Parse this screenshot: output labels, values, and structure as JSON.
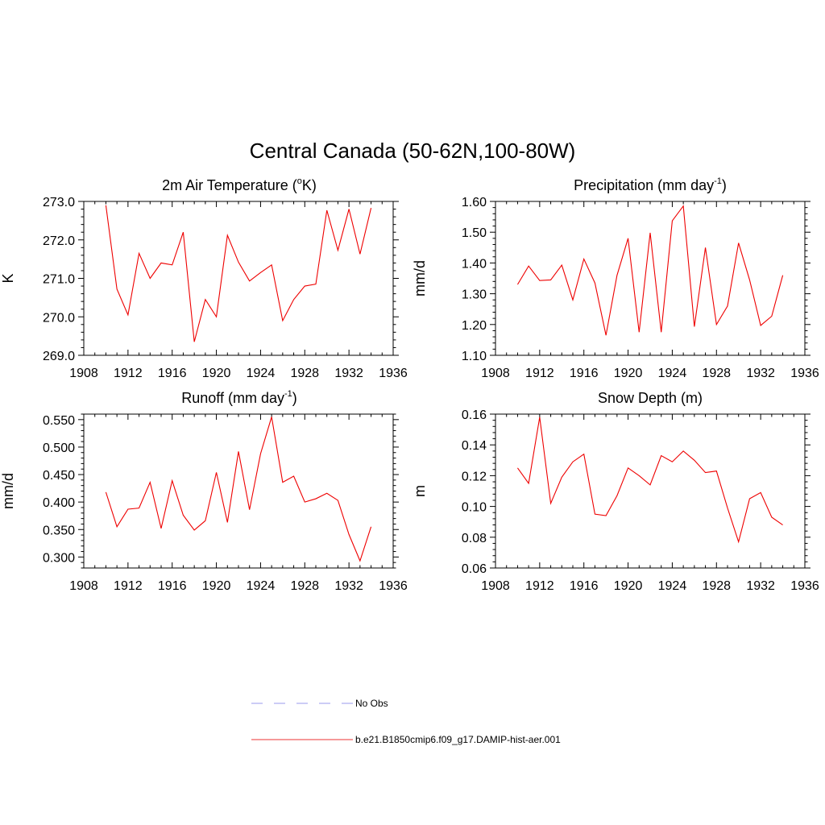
{
  "figure_title": "Central Canada (50-62N,100-80W)",
  "legend": {
    "entries": [
      {
        "label": "No Obs",
        "style": "dashed",
        "color": "#9999ee"
      },
      {
        "label": "b.e21.B1850cmip6.f09_g17.DAMIP-hist-aer.001",
        "style": "solid",
        "color": "#ee3333"
      }
    ]
  },
  "chart_data": [
    {
      "type": "line",
      "title": "2m Air Temperature (",
      "title_sup": "o",
      "title_suffix": "K)",
      "ylabel": "K",
      "xlim": [
        1908,
        1936
      ],
      "ylim": [
        269.0,
        273.0
      ],
      "xticks": [
        1908,
        1912,
        1916,
        1920,
        1924,
        1928,
        1932,
        1936
      ],
      "yticks": [
        269.0,
        270.0,
        271.0,
        272.0,
        273.0
      ],
      "ytick_labels": [
        "269.0",
        "270.0",
        "271.0",
        "272.0",
        "273.0"
      ],
      "x": [
        1910,
        1911,
        1912,
        1913,
        1914,
        1915,
        1916,
        1917,
        1918,
        1919,
        1920,
        1921,
        1922,
        1923,
        1924,
        1925,
        1926,
        1927,
        1928,
        1929,
        1930,
        1931,
        1932,
        1933,
        1934
      ],
      "series": [
        {
          "values": [
            272.9,
            270.72,
            270.05,
            271.65,
            271.0,
            271.4,
            271.35,
            272.2,
            269.35,
            270.45,
            270.0,
            272.12,
            271.42,
            270.93,
            271.15,
            271.35,
            269.9,
            270.45,
            270.8,
            270.85,
            272.77,
            271.73,
            272.8,
            271.63,
            272.83
          ],
          "color": "#ee0000"
        }
      ]
    },
    {
      "type": "line",
      "title": "Precipitation (mm day",
      "title_sup": "-1",
      "title_suffix": ")",
      "ylabel": "mm/d",
      "xlim": [
        1908,
        1936
      ],
      "ylim": [
        1.1,
        1.6
      ],
      "xticks": [
        1908,
        1912,
        1916,
        1920,
        1924,
        1928,
        1932,
        1936
      ],
      "yticks": [
        1.1,
        1.2,
        1.3,
        1.4,
        1.5,
        1.6
      ],
      "ytick_labels": [
        "1.10",
        "1.20",
        "1.30",
        "1.40",
        "1.50",
        "1.60"
      ],
      "x": [
        1910,
        1911,
        1912,
        1913,
        1914,
        1915,
        1916,
        1917,
        1918,
        1919,
        1920,
        1921,
        1922,
        1923,
        1924,
        1925,
        1926,
        1927,
        1928,
        1929,
        1930,
        1931,
        1932,
        1933,
        1934
      ],
      "series": [
        {
          "values": [
            1.33,
            1.39,
            1.343,
            1.345,
            1.393,
            1.28,
            1.413,
            1.335,
            1.165,
            1.36,
            1.48,
            1.175,
            1.498,
            1.175,
            1.537,
            1.585,
            1.193,
            1.45,
            1.2,
            1.26,
            1.465,
            1.345,
            1.197,
            1.227,
            1.36
          ],
          "color": "#ee0000"
        }
      ]
    },
    {
      "type": "line",
      "title": "Runoff (mm day",
      "title_sup": "-1",
      "title_suffix": ")",
      "ylabel": "mm/d",
      "xlim": [
        1908,
        1936
      ],
      "ylim": [
        0.28,
        0.56
      ],
      "xticks": [
        1908,
        1912,
        1916,
        1920,
        1924,
        1928,
        1932,
        1936
      ],
      "yticks": [
        0.3,
        0.35,
        0.4,
        0.45,
        0.5,
        0.55
      ],
      "ytick_labels": [
        "0.300",
        "0.350",
        "0.400",
        "0.450",
        "0.500",
        "0.550"
      ],
      "x": [
        1910,
        1911,
        1912,
        1913,
        1914,
        1915,
        1916,
        1917,
        1918,
        1919,
        1920,
        1921,
        1922,
        1923,
        1924,
        1925,
        1926,
        1927,
        1928,
        1929,
        1930,
        1931,
        1932,
        1933,
        1934
      ],
      "series": [
        {
          "values": [
            0.418,
            0.355,
            0.387,
            0.389,
            0.436,
            0.352,
            0.439,
            0.376,
            0.349,
            0.366,
            0.454,
            0.363,
            0.492,
            0.386,
            0.488,
            0.555,
            0.436,
            0.447,
            0.4,
            0.406,
            0.416,
            0.403,
            0.341,
            0.293,
            0.355
          ],
          "color": "#ee0000"
        }
      ]
    },
    {
      "type": "line",
      "title": "Snow Depth (m)",
      "title_sup": "",
      "title_suffix": "",
      "ylabel": "m",
      "xlim": [
        1908,
        1936
      ],
      "ylim": [
        0.06,
        0.16
      ],
      "xticks": [
        1908,
        1912,
        1916,
        1920,
        1924,
        1928,
        1932,
        1936
      ],
      "yticks": [
        0.06,
        0.08,
        0.1,
        0.12,
        0.14,
        0.16
      ],
      "ytick_labels": [
        "0.06",
        "0.08",
        "0.10",
        "0.12",
        "0.14",
        "0.16"
      ],
      "x": [
        1910,
        1911,
        1912,
        1913,
        1914,
        1915,
        1916,
        1917,
        1918,
        1919,
        1920,
        1921,
        1922,
        1923,
        1924,
        1925,
        1926,
        1927,
        1928,
        1929,
        1930,
        1931,
        1932,
        1933,
        1934
      ],
      "series": [
        {
          "values": [
            0.125,
            0.115,
            0.158,
            0.102,
            0.119,
            0.129,
            0.134,
            0.095,
            0.094,
            0.107,
            0.125,
            0.12,
            0.114,
            0.133,
            0.129,
            0.136,
            0.13,
            0.122,
            0.123,
            0.099,
            0.077,
            0.105,
            0.109,
            0.093,
            0.088
          ],
          "color": "#ee0000"
        }
      ]
    }
  ]
}
